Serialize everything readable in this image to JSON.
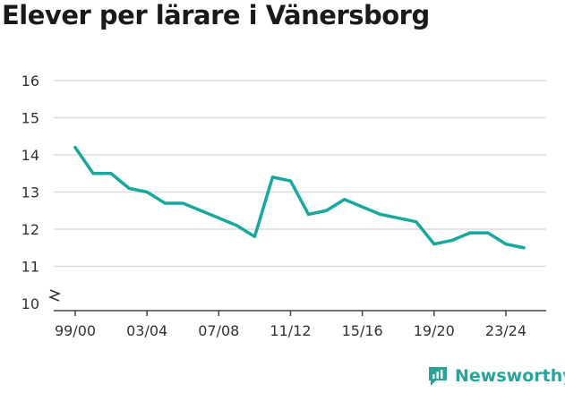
{
  "title": "Elever per lärare i Vänersborg",
  "brand": {
    "name": "Newsworthy"
  },
  "colors": {
    "line": "#17a89e",
    "grid": "#dcdcdc",
    "brand": "#2aa39a"
  },
  "chart_data": {
    "type": "line",
    "title": "Elever per lärare i Vänersborg",
    "xlabel": "",
    "ylabel": "",
    "ylim": [
      10,
      16
    ],
    "yticks": [
      10,
      11,
      12,
      13,
      14,
      15,
      16
    ],
    "y_axis_break": true,
    "grid": true,
    "x_ticks": [
      "99/00",
      "03/04",
      "07/08",
      "11/12",
      "15/16",
      "19/20",
      "23/24"
    ],
    "x": [
      "99/00",
      "00/01",
      "01/02",
      "02/03",
      "03/04",
      "04/05",
      "05/06",
      "06/07",
      "07/08",
      "08/09",
      "09/10",
      "10/11",
      "11/12",
      "12/13",
      "13/14",
      "14/15",
      "15/16",
      "16/17",
      "17/18",
      "18/19",
      "19/20",
      "20/21",
      "21/22",
      "22/23",
      "23/24",
      "24/25"
    ],
    "series": [
      {
        "values": [
          14.2,
          13.5,
          13.5,
          13.1,
          13.0,
          12.7,
          12.7,
          12.5,
          12.3,
          12.1,
          11.8,
          13.4,
          13.3,
          12.4,
          12.5,
          12.8,
          12.6,
          12.4,
          12.3,
          12.2,
          11.6,
          11.7,
          11.9,
          11.9,
          11.6,
          11.5
        ]
      }
    ]
  }
}
